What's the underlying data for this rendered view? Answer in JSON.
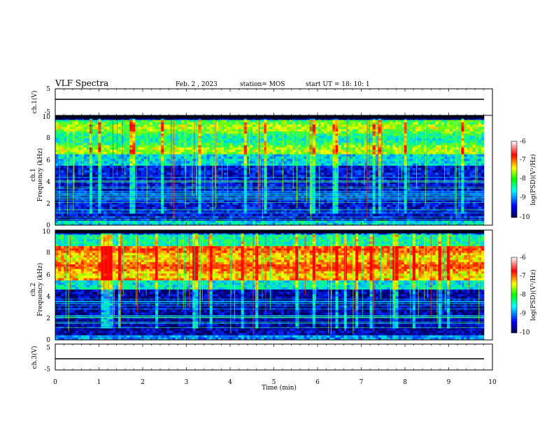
{
  "header": {
    "title": "VLF Spectra",
    "date": "Feb. 2 , 2023",
    "station": "station= MOS",
    "start": "start UT =   18: 10: 1"
  },
  "chart_data": [
    {
      "type": "line",
      "panel": "ch1-voltage",
      "ylabel": "ch.1(V)",
      "ylim": [
        -5,
        5
      ],
      "y_ticks": [
        "5",
        "-5"
      ],
      "baseline_value": 0
    },
    {
      "type": "heatmap",
      "panel": "ch1-spectrogram",
      "ylabel": "ch.1\nFrequency (kHz)",
      "ylim": [
        0,
        10
      ],
      "y_ticks": [
        "0",
        "2",
        "4",
        "6",
        "8",
        "10"
      ],
      "dominant_band_khz": [
        6.5,
        9.5
      ],
      "colorbar": {
        "label": "log(PSD)(V²/Hz)",
        "range": [
          -10,
          -6
        ],
        "ticks": [
          "-6",
          "-7",
          "-8",
          "-9",
          "-10"
        ]
      }
    },
    {
      "type": "heatmap",
      "panel": "ch2-spectrogram",
      "ylabel": "ch.2\nFrequency (kHz)",
      "ylim": [
        0,
        10
      ],
      "y_ticks": [
        "0",
        "2",
        "4",
        "6",
        "8",
        "10"
      ],
      "dominant_band_khz": [
        5.5,
        8.5
      ],
      "colorbar": {
        "label": "log(PSD)(V²/Hz)",
        "range": [
          -10,
          -6
        ],
        "ticks": [
          "-6",
          "-7",
          "-8",
          "-9",
          "-10"
        ]
      }
    },
    {
      "type": "line",
      "panel": "ch3-voltage",
      "ylabel": "ch.3(V)",
      "ylim": [
        -5,
        5
      ],
      "y_ticks": [
        "5",
        "-5"
      ],
      "baseline_value": 0
    }
  ],
  "x_axis": {
    "label": "Time (min)",
    "xlim": [
      0,
      10
    ],
    "ticks": [
      "0",
      "1",
      "2",
      "3",
      "4",
      "5",
      "6",
      "7",
      "8",
      "9",
      "10"
    ]
  },
  "colors": {
    "background_dark": "#000028",
    "colormap": [
      "#08006e",
      "#0020ff",
      "#00c8ff",
      "#00ff80",
      "#d8ff00",
      "#ff8800",
      "#ff0000",
      "#ffffff"
    ]
  }
}
